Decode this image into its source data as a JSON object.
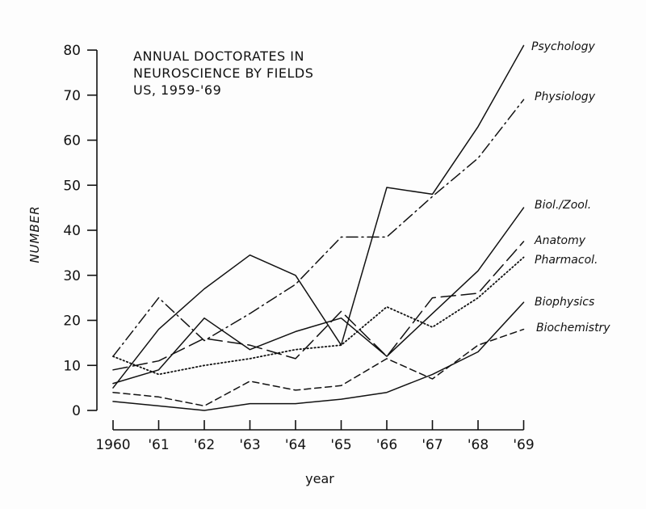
{
  "chart_data": {
    "type": "line",
    "title_lines": [
      "ANNUAL DOCTORATES IN",
      "NEUROSCIENCE BY FIELDS",
      "US, 1959-'69"
    ],
    "xlabel": "year",
    "ylabel": "NUMBER",
    "x_tick_labels": [
      "1960",
      "'61",
      "'62",
      "'63",
      "'64",
      "'65",
      "'66",
      "'67",
      "'68",
      "'69"
    ],
    "y_ticks": [
      0,
      10,
      20,
      30,
      40,
      50,
      60,
      70,
      80
    ],
    "ylim": [
      0,
      80
    ],
    "grid": false,
    "series": [
      {
        "name": "Psychology",
        "style": "solid",
        "values": [
          5,
          18,
          27,
          34.5,
          30,
          14.5,
          49.5,
          48,
          63,
          81
        ]
      },
      {
        "name": "Physiology",
        "style": "dashdot",
        "values": [
          12,
          25,
          15.5,
          21.5,
          28,
          38.5,
          38.5,
          47.5,
          56,
          69
        ]
      },
      {
        "name": "Biol./Zool.",
        "style": "solid",
        "values": [
          6,
          9,
          20.5,
          13.5,
          17.5,
          20.5,
          12,
          21.5,
          31,
          45
        ]
      },
      {
        "name": "Anatomy",
        "style": "longdash",
        "values": [
          9,
          11,
          16,
          14.5,
          11.5,
          22,
          12,
          25,
          26,
          37.5
        ]
      },
      {
        "name": "Pharmacol.",
        "style": "dotted",
        "values": [
          12,
          8,
          10,
          11.5,
          13.5,
          14.5,
          23,
          18.5,
          25,
          34
        ]
      },
      {
        "name": "Biophysics",
        "style": "solid",
        "values": [
          2,
          1,
          0,
          1.5,
          1.5,
          2.5,
          4,
          8,
          13,
          24
        ]
      },
      {
        "name": "Biochemistry",
        "style": "shortdash",
        "values": [
          4,
          3,
          1,
          6.5,
          4.5,
          5.5,
          11.5,
          7,
          14.5,
          18
        ]
      }
    ]
  }
}
